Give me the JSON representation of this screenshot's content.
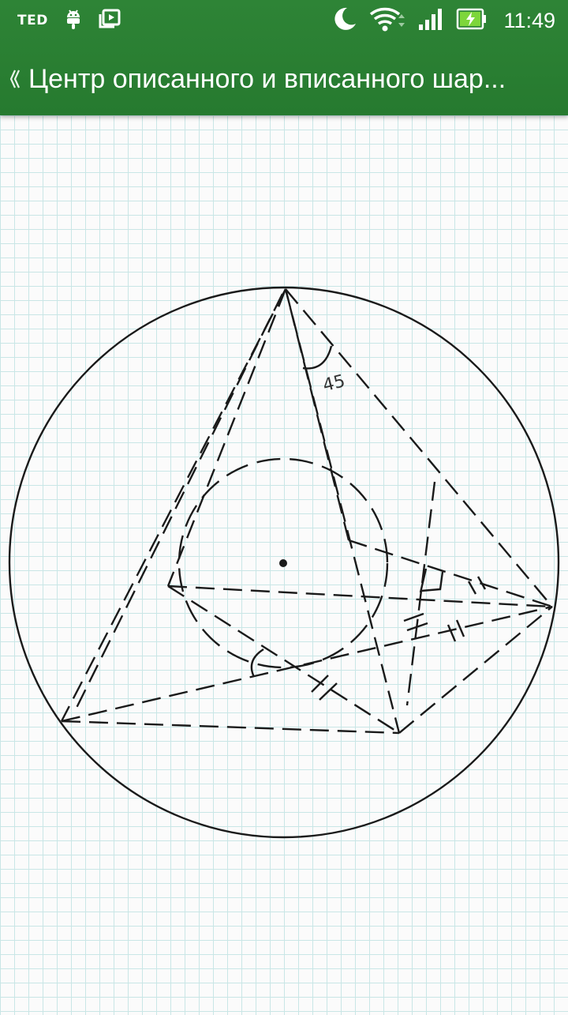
{
  "status_bar": {
    "app_label": "TED",
    "time": "11:49",
    "icons": [
      "ted-icon",
      "android-icon",
      "video-library-icon",
      "moon-icon",
      "wifi-icon",
      "signal-icon",
      "battery-charging-icon"
    ]
  },
  "toolbar": {
    "back_icon": "chevron-left-icon",
    "title": "Центр описанного и вписанного шар..."
  },
  "diagram": {
    "angle_label": "45",
    "colors": {
      "appbar": "#2e8436",
      "ink": "#1a1a1a",
      "grid": "#c9e6e6"
    }
  }
}
